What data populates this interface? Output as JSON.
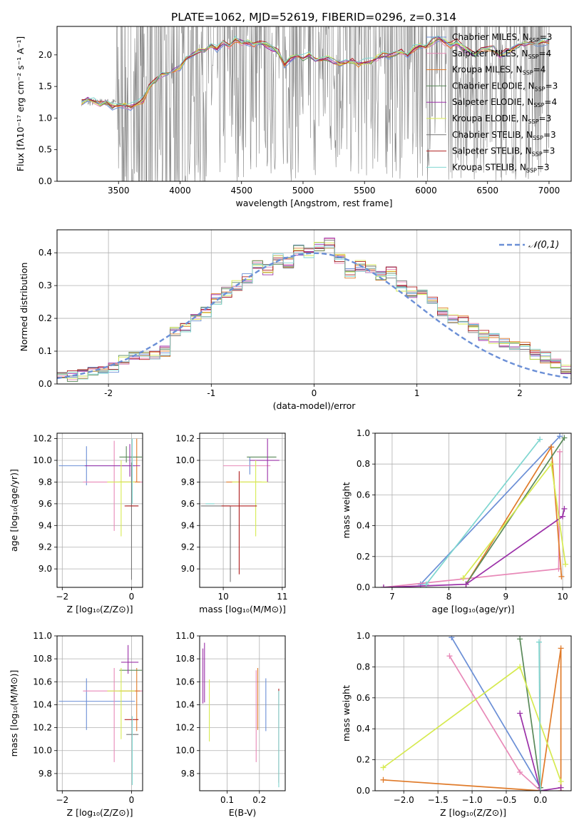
{
  "figure_title": "PLATE=1062, MJD=52619, FIBERID=0296, z=0.314",
  "legend_series": [
    {
      "name": "Chabrier MILES, N",
      "sub": "SSP",
      "tail": "=3",
      "color": "#6b8fd6"
    },
    {
      "name": "Salpeter MILES, N",
      "sub": "SSP",
      "tail": "=4",
      "color": "#e889b8"
    },
    {
      "name": "Kroupa MILES, N",
      "sub": "SSP",
      "tail": "=4",
      "color": "#e07b2a"
    },
    {
      "name": "Chabrier ELODIE, N",
      "sub": "SSP",
      "tail": "=3",
      "color": "#5a8a5a"
    },
    {
      "name": "Salpeter ELODIE, N",
      "sub": "SSP",
      "tail": "=4",
      "color": "#9b30a8"
    },
    {
      "name": "Kroupa ELODIE, N",
      "sub": "SSP",
      "tail": "=3",
      "color": "#d6ea50"
    },
    {
      "name": "Chabrier STELIB, N",
      "sub": "SSP",
      "tail": "=3",
      "color": "#777777"
    },
    {
      "name": "Salpeter STELIB, N",
      "sub": "SSP",
      "tail": "=3",
      "color": "#b02020"
    },
    {
      "name": "Kroupa STELIB, N",
      "sub": "SSP",
      "tail": "=3",
      "color": "#7fd6d0"
    }
  ],
  "chart_data": [
    {
      "id": "spectrum",
      "type": "line",
      "xlabel": "wavelength [Angstrom, rest frame]",
      "ylabel": "Flux [fλ10⁻¹⁷ erg cm⁻² s⁻¹ A⁻¹]",
      "xlim": [
        3000,
        7180
      ],
      "ylim": [
        0,
        2.45
      ],
      "xticks": [
        3500,
        4000,
        4500,
        5000,
        5500,
        6000,
        6500,
        7000
      ],
      "yticks": [
        0.0,
        0.5,
        1.0,
        1.5,
        2.0
      ],
      "ytick_labels": [
        "0.0",
        "0.5",
        "1.0",
        "1.5",
        "2.0"
      ],
      "model_x": [
        3200,
        3250,
        3300,
        3350,
        3400,
        3450,
        3500,
        3550,
        3600,
        3650,
        3700,
        3750,
        3800,
        3850,
        3900,
        3950,
        4000,
        4050,
        4100,
        4150,
        4200,
        4250,
        4300,
        4350,
        4400,
        4450,
        4500,
        4550,
        4600,
        4650,
        4700,
        4750,
        4800,
        4850,
        4900,
        4950,
        5000,
        5050,
        5100,
        5150,
        5200,
        5250,
        5300,
        5350,
        5400,
        5450,
        5500,
        5550,
        5600,
        5650,
        5700,
        5750,
        5800,
        5850,
        5900,
        5950,
        6000,
        6050,
        6100,
        6150,
        6200,
        6250,
        6300,
        6350,
        6400,
        6450,
        6500,
        6550,
        6600,
        6650,
        6700,
        6750,
        6800,
        6850,
        6900,
        6950,
        7000
      ],
      "model_y": [
        1.25,
        1.3,
        1.28,
        1.22,
        1.25,
        1.18,
        1.22,
        1.2,
        1.18,
        1.22,
        1.28,
        1.5,
        1.6,
        1.7,
        1.7,
        1.75,
        1.8,
        1.95,
        2.0,
        2.05,
        2.05,
        2.15,
        2.1,
        2.2,
        2.15,
        2.25,
        2.2,
        2.2,
        2.15,
        2.2,
        2.15,
        2.1,
        2.05,
        1.85,
        1.95,
        2.0,
        1.95,
        2.0,
        1.9,
        1.92,
        1.95,
        1.9,
        1.85,
        1.88,
        1.9,
        1.85,
        1.88,
        1.9,
        1.95,
        2.0,
        1.98,
        2.0,
        2.05,
        2.0,
        2.1,
        2.15,
        2.12,
        2.2,
        2.25,
        2.2,
        2.15,
        2.2,
        2.1,
        2.05,
        2.0,
        2.08,
        2.1,
        2.1,
        2.0,
        2.05,
        2.1,
        2.15,
        2.18,
        2.2,
        2.15,
        2.2,
        2.2
      ]
    },
    {
      "id": "residuals",
      "type": "histogram",
      "xlabel": "(data-model)/error",
      "ylabel": "Normed distribution",
      "xlim": [
        -2.5,
        2.5
      ],
      "ylim": [
        0,
        0.47
      ],
      "xticks": [
        -2,
        -1,
        0,
        1,
        2
      ],
      "yticks": [
        0.0,
        0.1,
        0.2,
        0.3,
        0.4
      ],
      "ytick_labels": [
        "0.0",
        "0.1",
        "0.2",
        "0.3",
        "0.4"
      ],
      "legend": "𝒩(0,1)",
      "bin_edges_start": -2.5,
      "bin_width": 0.1,
      "densities": [
        0.02,
        0.025,
        0.03,
        0.04,
        0.04,
        0.05,
        0.07,
        0.08,
        0.085,
        0.09,
        0.1,
        0.16,
        0.17,
        0.2,
        0.22,
        0.26,
        0.28,
        0.3,
        0.32,
        0.36,
        0.35,
        0.38,
        0.37,
        0.41,
        0.4,
        0.42,
        0.43,
        0.38,
        0.34,
        0.36,
        0.35,
        0.33,
        0.34,
        0.3,
        0.28,
        0.27,
        0.25,
        0.22,
        0.2,
        0.19,
        0.17,
        0.15,
        0.14,
        0.13,
        0.12,
        0.11,
        0.09,
        0.08,
        0.06,
        0.04
      ]
    },
    {
      "id": "age_vs_Z",
      "type": "errorbar",
      "xlabel": "Z [log₁₀(Z/Z⊙)]",
      "ylabel": "age  [log₁₀(age/yr)]",
      "xlim": [
        -2.15,
        0.32
      ],
      "ylim": [
        8.83,
        10.25
      ],
      "xticks": [
        -2,
        0
      ],
      "xtick_labels": [
        "−2",
        "0"
      ],
      "yticks": [
        9.0,
        9.2,
        9.4,
        9.6,
        9.8,
        10.0,
        10.2
      ],
      "ytick_labels": [
        "9.0",
        "9.2",
        "9.4",
        "9.6",
        "9.8",
        "10.0",
        "10.2"
      ],
      "points": [
        {
          "series": 0,
          "x": -1.3,
          "xerr": [
            0.8,
            1.4
          ],
          "y": 9.95,
          "yerr": [
            0.18,
            0.18
          ]
        },
        {
          "series": 1,
          "x": -0.5,
          "xerr": [
            0.9,
            1.1
          ],
          "y": 9.8,
          "yerr": [
            0.45,
            0.38
          ]
        },
        {
          "series": 2,
          "x": 0.15,
          "xerr": [
            0.5,
            0.1
          ],
          "y": 9.8,
          "yerr": [
            0.0,
            0.4
          ]
        },
        {
          "series": 3,
          "x": -0.15,
          "xerr": [
            0.2,
            0.45
          ],
          "y": 10.03,
          "yerr": [
            0.05,
            0.1
          ]
        },
        {
          "series": 4,
          "x": -0.05,
          "xerr": [
            1.3,
            0.3
          ],
          "y": 9.95,
          "yerr": [
            0.1,
            0.2
          ]
        },
        {
          "series": 5,
          "x": -0.3,
          "xerr": [
            0.4,
            0.4
          ],
          "y": 9.8,
          "yerr": [
            0.5,
            0.2
          ]
        },
        {
          "series": 6,
          "x": 0.0,
          "xerr": [
            0.15,
            0.2
          ],
          "y": 9.58,
          "yerr": [
            0.68,
            0.4
          ]
        },
        {
          "series": 7,
          "x": 0.0,
          "xerr": [
            0.2,
            0.2
          ],
          "y": 9.58,
          "yerr": [
            0.0,
            0.0
          ]
        },
        {
          "series": 8,
          "x": 0.02,
          "xerr": [
            0.0,
            0.0
          ],
          "y": 9.9,
          "yerr": [
            0.3,
            0.3
          ]
        }
      ]
    },
    {
      "id": "age_vs_mass",
      "type": "errorbar",
      "xlabel": "mass [log₁₀(M/M⊙)]",
      "ylabel": "",
      "xlim": [
        9.6,
        11.05
      ],
      "ylim": [
        8.83,
        10.25
      ],
      "xticks": [
        10,
        11
      ],
      "xtick_labels": [
        "10",
        "11"
      ],
      "yticks": [
        9.0,
        9.2,
        9.4,
        9.6,
        9.8,
        10.0,
        10.2
      ],
      "ytick_labels": [
        "9.0",
        "9.2",
        "9.4",
        "9.6",
        "9.8",
        "10.0",
        "10.2"
      ],
      "points": [
        {
          "series": 0,
          "x": 10.45,
          "xerr": [
            0.0,
            0.0
          ],
          "y": 9.95,
          "yerr": [
            0.08,
            0.08
          ]
        },
        {
          "series": 1,
          "x": 10.5,
          "xerr": [
            0.5,
            0.3
          ],
          "y": 9.95,
          "yerr": [
            0.0,
            0.0
          ]
        },
        {
          "series": 2,
          "x": 10.4,
          "xerr": [
            0.35,
            0.25
          ],
          "y": 9.8,
          "yerr": [
            0.0,
            0.0
          ]
        },
        {
          "series": 3,
          "x": 10.7,
          "xerr": [
            0.3,
            0.2
          ],
          "y": 10.03,
          "yerr": [
            0.0,
            0.0
          ]
        },
        {
          "series": 4,
          "x": 10.75,
          "xerr": [
            0.3,
            0.2
          ],
          "y": 10.0,
          "yerr": [
            0.2,
            0.2
          ]
        },
        {
          "series": 5,
          "x": 10.55,
          "xerr": [
            0.4,
            0.2
          ],
          "y": 9.8,
          "yerr": [
            0.5,
            0.2
          ]
        },
        {
          "series": 6,
          "x": 10.12,
          "xerr": [
            0.5,
            0.0
          ],
          "y": 9.58,
          "yerr": [
            0.7,
            0.0
          ]
        },
        {
          "series": 7,
          "x": 10.27,
          "xerr": [
            0.3,
            0.3
          ],
          "y": 9.58,
          "yerr": [
            0.63,
            0.32
          ]
        },
        {
          "series": 8,
          "x": 9.85,
          "xerr": [
            0.15,
            0.0
          ],
          "y": 9.6,
          "yerr": [
            0.0,
            0.0
          ]
        }
      ]
    },
    {
      "id": "weight_vs_age",
      "type": "line",
      "xlabel": "age  [log₁₀(age/yr)]",
      "ylabel": "mass weight",
      "xlim": [
        6.7,
        10.15
      ],
      "ylim": [
        0,
        1.0
      ],
      "xticks": [
        7,
        8,
        9,
        10
      ],
      "yticks": [
        0.0,
        0.2,
        0.4,
        0.6,
        0.8,
        1.0
      ],
      "ytick_labels": [
        "0.0",
        "0.2",
        "0.4",
        "0.6",
        "0.8",
        "1.0"
      ],
      "series_lines": [
        {
          "series": 0,
          "x": [
            7.5,
            9.95
          ],
          "y": [
            0.02,
            0.98
          ]
        },
        {
          "series": 1,
          "x": [
            6.85,
            9.93,
            9.95
          ],
          "y": [
            0.0,
            0.12,
            0.88
          ]
        },
        {
          "series": 2,
          "x": [
            8.3,
            9.8,
            9.98
          ],
          "y": [
            0.02,
            0.91,
            0.07
          ]
        },
        {
          "series": 3,
          "x": [
            8.3,
            10.03
          ],
          "y": [
            0.02,
            0.97
          ]
        },
        {
          "series": 4,
          "x": [
            6.85,
            8.3,
            10.0,
            10.03
          ],
          "y": [
            0.0,
            0.02,
            0.46,
            0.51
          ]
        },
        {
          "series": 5,
          "x": [
            8.25,
            9.8,
            10.05
          ],
          "y": [
            0.06,
            0.8,
            0.15
          ]
        },
        {
          "series": 8,
          "x": [
            7.6,
            9.6
          ],
          "y": [
            0.02,
            0.96
          ]
        }
      ]
    },
    {
      "id": "mass_vs_Z",
      "type": "errorbar",
      "xlabel": "Z [log₁₀(Z/Z⊙)]",
      "ylabel": "mass [log₁₀(M/M⊙)]",
      "xlim": [
        -2.15,
        0.32
      ],
      "ylim": [
        9.65,
        11.0
      ],
      "xticks": [
        -2,
        0
      ],
      "xtick_labels": [
        "−2",
        "0"
      ],
      "yticks": [
        9.8,
        10.0,
        10.2,
        10.4,
        10.6,
        10.8,
        11.0
      ],
      "ytick_labels": [
        "9.8",
        "10.0",
        "10.2",
        "10.4",
        "10.6",
        "10.8",
        "11.0"
      ],
      "points": [
        {
          "series": 0,
          "x": -1.3,
          "xerr": [
            0.8,
            1.4
          ],
          "y": 10.43,
          "yerr": [
            0.25,
            0.2
          ]
        },
        {
          "series": 1,
          "x": -0.5,
          "xerr": [
            0.9,
            1.1
          ],
          "y": 10.52,
          "yerr": [
            0.62,
            0.2
          ]
        },
        {
          "series": 2,
          "x": 0.15,
          "xerr": [
            0.5,
            0.1
          ],
          "y": 10.52,
          "yerr": [
            0.35,
            0.2
          ]
        },
        {
          "series": 3,
          "x": -0.15,
          "xerr": [
            0.2,
            0.45
          ],
          "y": 10.7,
          "yerr": [
            0.0,
            0.0
          ]
        },
        {
          "series": 4,
          "x": -0.1,
          "xerr": [
            0.2,
            0.3
          ],
          "y": 10.77,
          "yerr": [
            0.1,
            0.15
          ]
        },
        {
          "series": 5,
          "x": -0.3,
          "xerr": [
            0.4,
            0.4
          ],
          "y": 10.52,
          "yerr": [
            0.42,
            0.2
          ]
        },
        {
          "series": 6,
          "x": 0.0,
          "xerr": [
            0.15,
            0.2
          ],
          "y": 10.14,
          "yerr": [
            0.0,
            0.0
          ]
        },
        {
          "series": 7,
          "x": 0.0,
          "xerr": [
            0.2,
            0.2
          ],
          "y": 10.27,
          "yerr": [
            0.0,
            0.0
          ]
        },
        {
          "series": 8,
          "x": 0.02,
          "xerr": [
            0.0,
            0.0
          ],
          "y": 10.0,
          "yerr": [
            0.3,
            0.3
          ]
        }
      ]
    },
    {
      "id": "mass_vs_EBV",
      "type": "errorbar",
      "xlabel": "E(B-V)",
      "ylabel": "",
      "xlim": [
        0.015,
        0.28
      ],
      "ylim": [
        9.65,
        11.0
      ],
      "xticks": [
        0.1,
        0.2
      ],
      "xtick_labels": [
        "0.1",
        "0.2"
      ],
      "yticks": [
        9.8,
        10.0,
        10.2,
        10.4,
        10.6,
        10.8,
        11.0
      ],
      "ytick_labels": [
        "9.8",
        "10.0",
        "10.2",
        "10.4",
        "10.6",
        "10.8",
        "11.0"
      ],
      "points": [
        {
          "series": 0,
          "x": 0.22,
          "xerr": [
            0.0,
            0.0
          ],
          "y": 10.4,
          "yerr": [
            0.23,
            0.23
          ]
        },
        {
          "series": 1,
          "x": 0.19,
          "xerr": [
            0.0,
            0.0
          ],
          "y": 10.3,
          "yerr": [
            0.4,
            0.4
          ]
        },
        {
          "series": 2,
          "x": 0.195,
          "xerr": [
            0.0,
            0.0
          ],
          "y": 10.45,
          "yerr": [
            0.27,
            0.27
          ]
        },
        {
          "series": 4,
          "x": 0.03,
          "xerr": [
            0.0,
            0.0
          ],
          "y": 10.66,
          "yerr": [
            0.24,
            0.28
          ]
        },
        {
          "series": 4,
          "x": 0.025,
          "xerr": [
            0.0,
            0.0
          ],
          "y": 10.65,
          "yerr": [
            0.24,
            0.24
          ]
        },
        {
          "series": 5,
          "x": 0.045,
          "xerr": [
            0.0,
            0.0
          ],
          "y": 10.35,
          "yerr": [
            0.27,
            0.27
          ]
        },
        {
          "series": 7,
          "x": 0.26,
          "xerr": [
            0.0,
            0.0
          ],
          "y": 10.14,
          "yerr": [
            0.42,
            0.4
          ]
        },
        {
          "series": 8,
          "x": 0.26,
          "xerr": [
            0.0,
            0.0
          ],
          "y": 10.1,
          "yerr": [
            0.42,
            0.42
          ]
        }
      ]
    },
    {
      "id": "weight_vs_Z",
      "type": "line",
      "xlabel": "Z [log₁₀(Z/Z⊙)]",
      "ylabel": "mass weight",
      "xlim": [
        -2.42,
        0.45
      ],
      "ylim": [
        0,
        1.0
      ],
      "xticks": [
        -2.0,
        -1.5,
        -1.0,
        -0.5,
        0.0
      ],
      "xtick_labels": [
        "−2.0",
        "−1.5",
        "−1.0",
        "−0.5",
        "0.0"
      ],
      "yticks": [
        0.0,
        0.2,
        0.4,
        0.6,
        0.8,
        1.0
      ],
      "ytick_labels": [
        "0.0",
        "0.2",
        "0.4",
        "0.6",
        "0.8",
        "1.0"
      ],
      "series_lines": [
        {
          "series": 0,
          "x": [
            -1.3,
            0.0
          ],
          "y": [
            0.99,
            0.02
          ]
        },
        {
          "series": 1,
          "x": [
            -1.33,
            -0.3,
            0.0
          ],
          "y": [
            0.87,
            0.12,
            0.0
          ]
        },
        {
          "series": 2,
          "x": [
            -2.3,
            0.0,
            0.3,
            0.3
          ],
          "y": [
            0.07,
            0.0,
            0.92,
            0.0
          ]
        },
        {
          "series": 3,
          "x": [
            -0.3,
            0.0
          ],
          "y": [
            0.98,
            0.02
          ]
        },
        {
          "series": 4,
          "x": [
            -0.3,
            0.0,
            0.3
          ],
          "y": [
            0.5,
            0.0,
            0.02
          ]
        },
        {
          "series": 5,
          "x": [
            -2.3,
            -0.3,
            0.3
          ],
          "y": [
            0.15,
            0.8,
            0.06
          ]
        },
        {
          "series": 8,
          "x": [
            -0.02,
            0.0
          ],
          "y": [
            0.96,
            0.0
          ]
        }
      ]
    }
  ]
}
